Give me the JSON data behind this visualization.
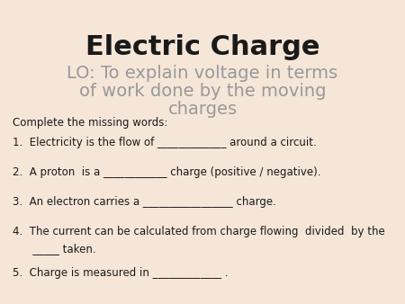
{
  "background_color": "#f5e6d8",
  "title": "Electric Charge",
  "title_fontsize": 22,
  "title_color": "#1a1a1a",
  "subtitle_line1": "LO: To explain voltage in terms",
  "subtitle_line2": "of work done by the moving",
  "subtitle_line3": "charges",
  "subtitle_fontsize": 14,
  "subtitle_color": "#999999",
  "instruction": "Complete the missing words:",
  "instruction_fontsize": 8.5,
  "instruction_color": "#1a1a1a",
  "items": [
    "Electricity is the flow of _____________ around a circuit.",
    "A proton  is a ____________ charge (positive / negative).",
    "An electron carries a _________________ charge.",
    "The current can be calculated from charge flowing  divided  by the\n      _____ taken.",
    "Charge is measured in _____________ ."
  ],
  "item_fontsize": 8.5,
  "item_color": "#1a1a1a"
}
